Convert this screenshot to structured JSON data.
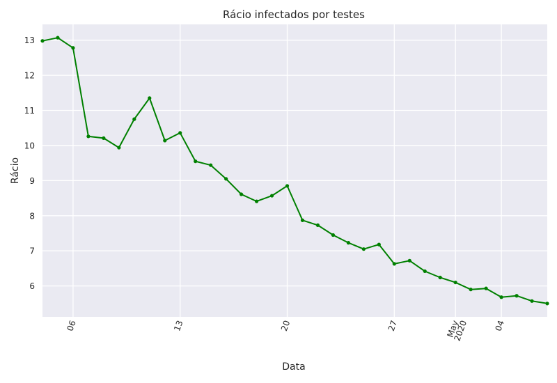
{
  "chart_data": {
    "type": "line",
    "title": "Rácio infectados por testes",
    "xlabel": "Data",
    "ylabel": "Rácio",
    "x": [
      "2020-04-04",
      "2020-04-05",
      "2020-04-06",
      "2020-04-07",
      "2020-04-08",
      "2020-04-09",
      "2020-04-10",
      "2020-04-11",
      "2020-04-12",
      "2020-04-13",
      "2020-04-14",
      "2020-04-15",
      "2020-04-16",
      "2020-04-17",
      "2020-04-18",
      "2020-04-19",
      "2020-04-20",
      "2020-04-21",
      "2020-04-22",
      "2020-04-23",
      "2020-04-24",
      "2020-04-25",
      "2020-04-26",
      "2020-04-27",
      "2020-04-28",
      "2020-04-29",
      "2020-04-30",
      "2020-05-01",
      "2020-05-02",
      "2020-05-03",
      "2020-05-04",
      "2020-05-05",
      "2020-05-06",
      "2020-05-07"
    ],
    "series": [
      {
        "values": [
          12.98,
          13.07,
          12.78,
          10.26,
          10.21,
          9.94,
          10.75,
          11.35,
          10.14,
          10.36,
          9.55,
          9.44,
          9.05,
          8.61,
          8.41,
          8.57,
          8.85,
          7.87,
          7.73,
          7.45,
          7.23,
          7.05,
          7.18,
          6.63,
          6.72,
          6.42,
          6.24,
          6.1,
          5.9,
          5.93,
          5.68,
          5.72,
          5.57,
          5.5
        ],
        "color": "#008000"
      }
    ],
    "xlim": [
      "2020-04-04",
      "2020-05-07"
    ],
    "ylim": [
      5.12,
      13.45
    ],
    "y_ticks": [
      6,
      7,
      8,
      9,
      10,
      11,
      12,
      13
    ],
    "x_ticks": [
      {
        "date": "2020-04-06",
        "label": "06"
      },
      {
        "date": "2020-04-13",
        "label": "13"
      },
      {
        "date": "2020-04-20",
        "label": "20"
      },
      {
        "date": "2020-04-27",
        "label": "27"
      },
      {
        "date": "2020-05-01",
        "label": "May",
        "sublabel": "2020"
      },
      {
        "date": "2020-05-04",
        "label": "04"
      }
    ],
    "grid": true,
    "style": "seaborn",
    "background_color": "#EAEAF2",
    "marker": "point"
  }
}
